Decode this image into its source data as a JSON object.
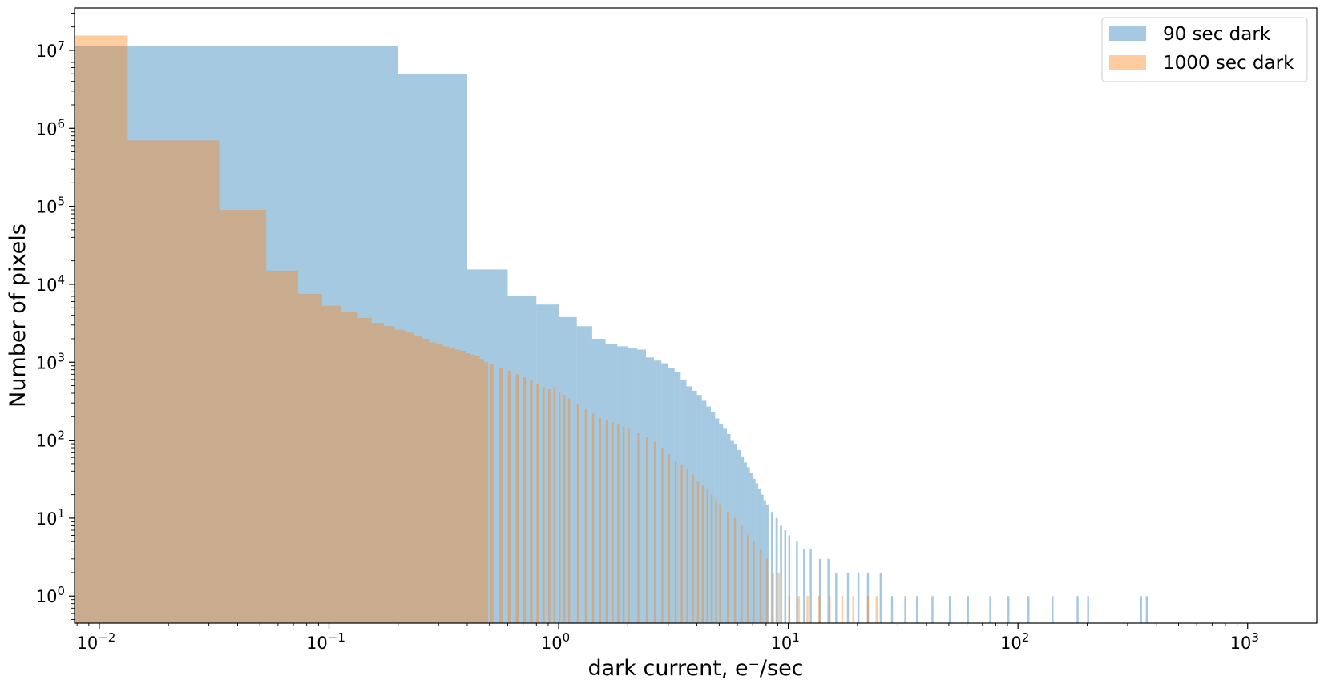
{
  "chart_data": {
    "type": "histogram",
    "xlabel": "dark current, e⁻/sec",
    "ylabel": "Number of pixels",
    "xscale": "log",
    "yscale": "log",
    "xlim": [
      0.0078,
      2000
    ],
    "ylim": [
      0.45,
      35000000
    ],
    "x_ticks": [
      {
        "value": 0.01,
        "base": "10",
        "exp": "−2"
      },
      {
        "value": 0.1,
        "base": "10",
        "exp": "−1"
      },
      {
        "value": 1,
        "base": "10",
        "exp": "0"
      },
      {
        "value": 10,
        "base": "10",
        "exp": "1"
      },
      {
        "value": 100,
        "base": "10",
        "exp": "2"
      },
      {
        "value": 1000,
        "base": "10",
        "exp": "3"
      }
    ],
    "y_ticks": [
      {
        "value": 1,
        "base": "10",
        "exp": "0"
      },
      {
        "value": 10,
        "base": "10",
        "exp": "1"
      },
      {
        "value": 100,
        "base": "10",
        "exp": "2"
      },
      {
        "value": 1000,
        "base": "10",
        "exp": "3"
      },
      {
        "value": 10000,
        "base": "10",
        "exp": "4"
      },
      {
        "value": 100000,
        "base": "10",
        "exp": "5"
      },
      {
        "value": 1000000,
        "base": "10",
        "exp": "6"
      },
      {
        "value": 10000000,
        "base": "10",
        "exp": "7"
      }
    ],
    "legend_position": "top-right",
    "grid": false,
    "series": [
      {
        "name": "90 sec dark",
        "color": "#1f77b4",
        "alpha": 0.4,
        "bin_width": 0.2,
        "bins": [
          [
            0.0,
            11500000
          ],
          [
            0.2,
            5000000
          ],
          [
            0.4,
            15500
          ],
          [
            0.6,
            7000
          ],
          [
            0.8,
            5500
          ],
          [
            1.0,
            3800
          ],
          [
            1.2,
            2900
          ],
          [
            1.4,
            2000
          ],
          [
            1.6,
            1700
          ],
          [
            1.8,
            1600
          ],
          [
            2.0,
            1500
          ],
          [
            2.2,
            1450
          ],
          [
            2.4,
            1150
          ],
          [
            2.6,
            1050
          ],
          [
            2.8,
            970
          ],
          [
            3.0,
            850
          ],
          [
            3.2,
            750
          ],
          [
            3.4,
            600
          ],
          [
            3.6,
            490
          ],
          [
            3.8,
            430
          ],
          [
            4.0,
            380
          ],
          [
            4.2,
            320
          ],
          [
            4.4,
            270
          ],
          [
            4.6,
            230
          ],
          [
            4.8,
            190
          ],
          [
            5.0,
            160
          ],
          [
            5.2,
            140
          ],
          [
            5.4,
            120
          ],
          [
            5.6,
            100
          ],
          [
            5.8,
            90
          ],
          [
            6.0,
            75
          ],
          [
            6.2,
            62
          ],
          [
            6.4,
            52
          ],
          [
            6.6,
            45
          ],
          [
            6.8,
            38
          ],
          [
            7.0,
            32
          ],
          [
            7.2,
            28
          ],
          [
            7.4,
            24
          ],
          [
            7.6,
            20
          ],
          [
            7.8,
            17
          ],
          [
            8.0,
            15
          ],
          [
            8.4,
            12
          ],
          [
            8.8,
            10
          ],
          [
            9.2,
            8
          ],
          [
            9.6,
            7
          ],
          [
            10.0,
            6
          ],
          [
            10.8,
            5
          ],
          [
            11.6,
            4
          ],
          [
            12.4,
            4
          ],
          [
            13.6,
            3
          ],
          [
            14.8,
            3
          ],
          [
            16.0,
            2
          ],
          [
            18.0,
            2
          ],
          [
            20.0,
            2
          ],
          [
            22.0,
            2
          ],
          [
            25.0,
            2
          ],
          [
            28.0,
            1
          ],
          [
            32.0,
            1
          ],
          [
            36.0,
            1
          ],
          [
            42.0,
            1
          ],
          [
            50.0,
            1
          ],
          [
            60.0,
            1
          ],
          [
            75.0,
            1
          ],
          [
            90.0,
            1
          ],
          [
            110.0,
            1
          ],
          [
            140.0,
            1
          ],
          [
            180.0,
            1
          ],
          [
            200.0,
            1
          ],
          [
            340.0,
            1
          ],
          [
            360.0,
            1
          ]
        ]
      },
      {
        "name": "1000 sec dark",
        "color": "#ff7f0e",
        "alpha": 0.4,
        "bin_width": 0.02,
        "bins": [
          [
            0.0,
            15500000
          ],
          [
            0.0133,
            700000
          ],
          [
            0.0333,
            90000
          ],
          [
            0.0533,
            15000
          ],
          [
            0.0733,
            7500
          ],
          [
            0.0933,
            5300
          ],
          [
            0.1133,
            4400
          ],
          [
            0.1333,
            3700
          ],
          [
            0.1533,
            3200
          ],
          [
            0.1733,
            2900
          ],
          [
            0.1933,
            2600
          ],
          [
            0.2133,
            2400
          ],
          [
            0.2333,
            2200
          ],
          [
            0.2533,
            2000
          ],
          [
            0.2733,
            1800
          ],
          [
            0.2933,
            1700
          ],
          [
            0.3133,
            1600
          ],
          [
            0.3333,
            1500
          ],
          [
            0.3533,
            1450
          ],
          [
            0.3733,
            1400
          ],
          [
            0.3933,
            1300
          ],
          [
            0.4133,
            1250
          ],
          [
            0.4333,
            1200
          ],
          [
            0.4533,
            1100
          ],
          [
            0.4733,
            1000
          ],
          [
            0.5,
            950
          ],
          [
            0.55,
            850
          ],
          [
            0.6,
            780
          ],
          [
            0.65,
            700
          ],
          [
            0.7,
            640
          ],
          [
            0.75,
            580
          ],
          [
            0.8,
            530
          ],
          [
            0.85,
            480
          ],
          [
            0.9,
            450
          ],
          [
            0.95,
            480
          ],
          [
            1.0,
            420
          ],
          [
            1.05,
            380
          ],
          [
            1.1,
            340
          ],
          [
            1.2,
            290
          ],
          [
            1.3,
            250
          ],
          [
            1.4,
            220
          ],
          [
            1.5,
            195
          ],
          [
            1.6,
            180
          ],
          [
            1.7,
            170
          ],
          [
            1.8,
            160
          ],
          [
            1.9,
            150
          ],
          [
            2.0,
            140
          ],
          [
            2.2,
            125
          ],
          [
            2.4,
            110
          ],
          [
            2.6,
            95
          ],
          [
            2.8,
            80
          ],
          [
            3.0,
            65
          ],
          [
            3.2,
            55
          ],
          [
            3.4,
            48
          ],
          [
            3.6,
            42
          ],
          [
            3.8,
            36
          ],
          [
            4.0,
            30
          ],
          [
            4.2,
            26
          ],
          [
            4.4,
            23
          ],
          [
            4.6,
            20
          ],
          [
            4.8,
            17
          ],
          [
            5.0,
            15
          ],
          [
            5.4,
            12
          ],
          [
            5.8,
            10
          ],
          [
            6.2,
            8
          ],
          [
            6.6,
            6
          ],
          [
            7.0,
            5
          ],
          [
            7.5,
            4
          ],
          [
            8.0,
            3
          ],
          [
            8.5,
            2
          ],
          [
            9.0,
            2
          ],
          [
            10.0,
            1
          ],
          [
            11.0,
            1
          ],
          [
            12.0,
            1
          ],
          [
            13.5,
            1
          ],
          [
            15.0,
            1
          ],
          [
            17.0,
            1
          ],
          [
            19.0,
            1
          ],
          [
            22.0,
            1
          ],
          [
            24.0,
            1
          ]
        ]
      }
    ]
  }
}
